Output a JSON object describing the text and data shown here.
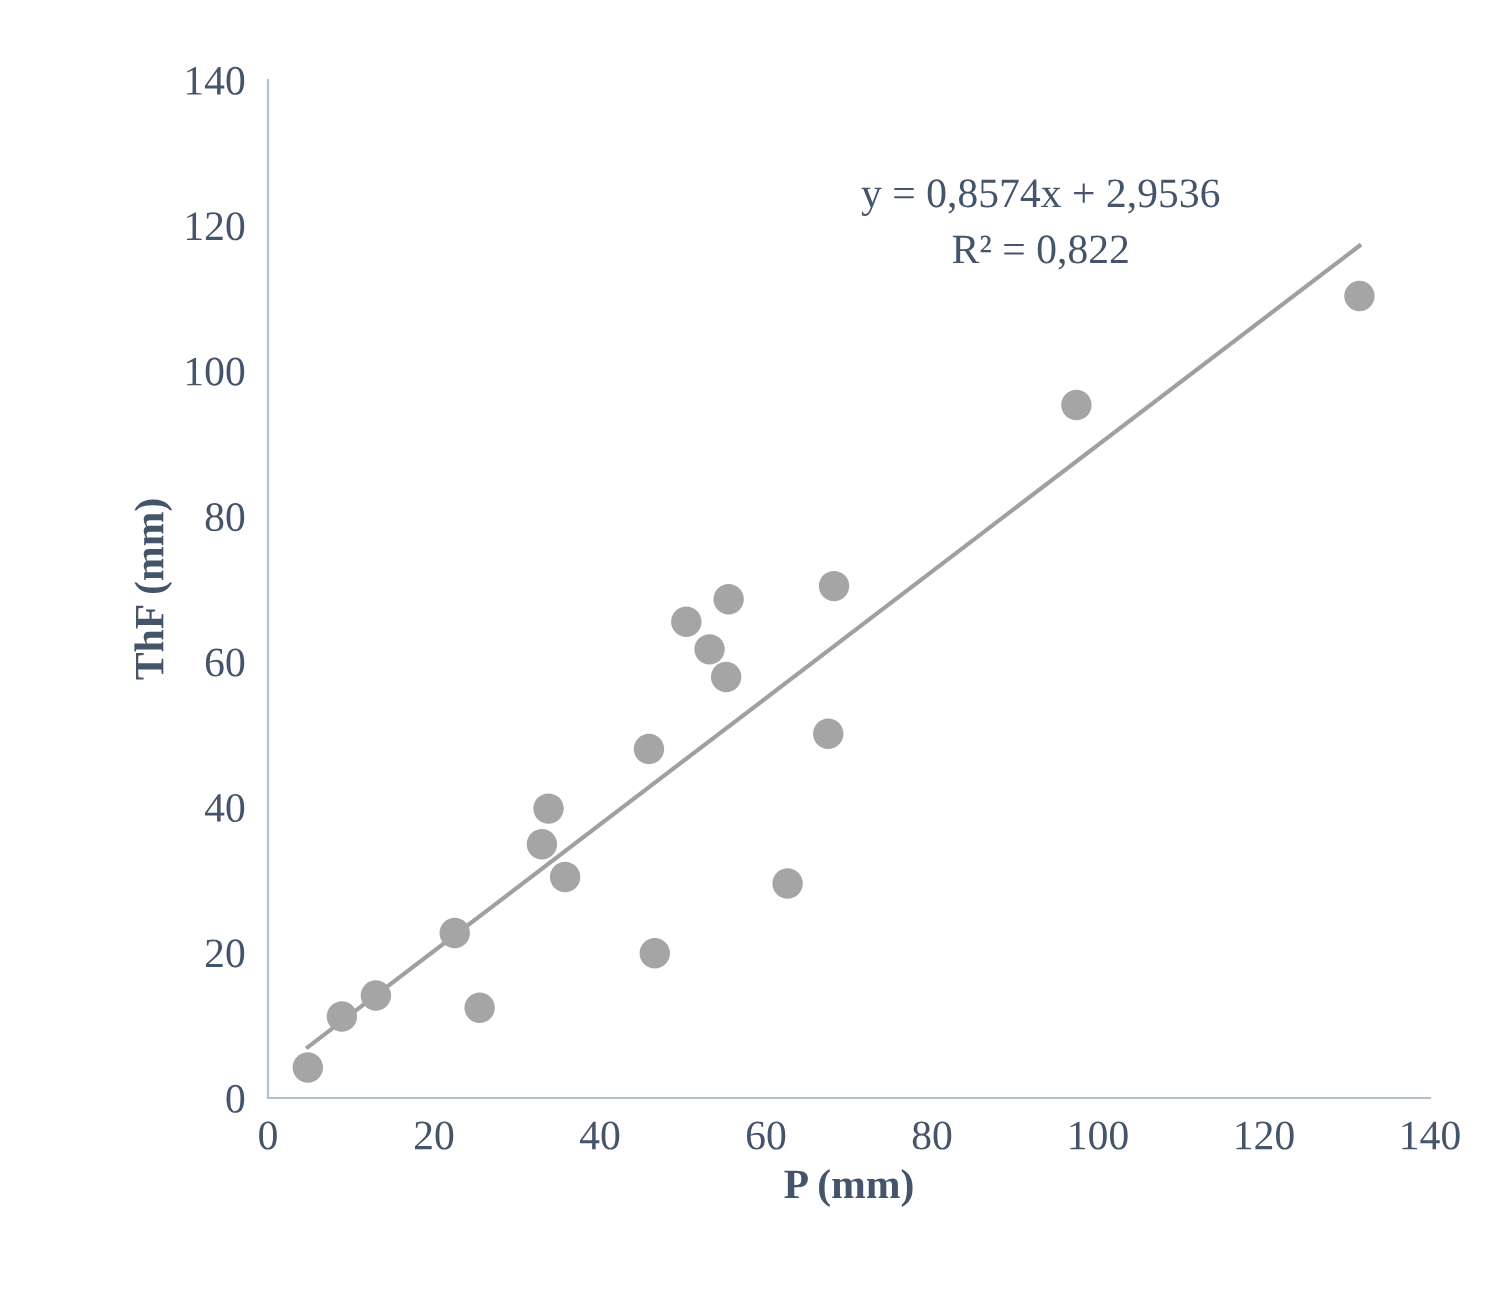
{
  "chart_data": {
    "type": "scatter",
    "xlabel": "P (mm)",
    "ylabel": "ThF (mm)",
    "xlim": [
      0,
      140
    ],
    "xticks": [
      0,
      20,
      40,
      60,
      80,
      100,
      120,
      140
    ],
    "ylim": [
      0,
      140
    ],
    "yticks": [
      0,
      20,
      40,
      60,
      80,
      100,
      120,
      140
    ],
    "grid": false,
    "annotations": [
      "y = 0,8574x + 2,9536",
      "R² = 0,822"
    ],
    "series": [
      {
        "marker": "circle",
        "color": "#a5a5a5",
        "x": [
          4.8,
          8.9,
          13.0,
          22.5,
          25.5,
          33.0,
          33.8,
          35.8,
          45.9,
          46.6,
          50.4,
          53.2,
          55.2,
          55.5,
          62.6,
          67.5,
          68.2,
          97.4,
          131.5
        ],
        "values": [
          4.2,
          11.2,
          14.1,
          22.7,
          12.4,
          34.9,
          39.8,
          30.4,
          48.0,
          19.9,
          65.5,
          61.7,
          57.9,
          68.6,
          29.5,
          50.1,
          70.4,
          95.3,
          110.3
        ]
      },
      {
        "type": "line",
        "color": "#a0a0a0",
        "line_style": "solid",
        "x": [
          4.8,
          131.5
        ],
        "values": [
          7.0,
          117.2
        ]
      }
    ]
  }
}
